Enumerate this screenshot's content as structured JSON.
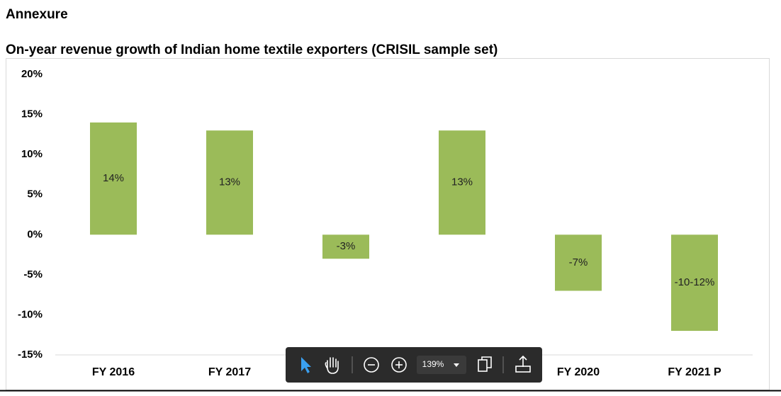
{
  "header": {
    "title": "Annexure"
  },
  "chart_data": {
    "type": "bar",
    "title": "On-year revenue growth of Indian home textile exporters (CRISIL sample set)",
    "categories": [
      "FY 2016",
      "FY 2017",
      null,
      null,
      "FY 2020",
      "FY 2021 P"
    ],
    "values": [
      14,
      13,
      -3,
      13,
      -7,
      -12
    ],
    "value_labels": [
      "14%",
      "13%",
      "-3%",
      "13%",
      "-7%",
      "-10-12%"
    ],
    "color": "#9bbb59",
    "ylim": [
      -15,
      20
    ],
    "yticks": [
      {
        "value": -15,
        "label": "-15%"
      },
      {
        "value": -10,
        "label": "-10%"
      },
      {
        "value": -5,
        "label": "-5%"
      },
      {
        "value": 0,
        "label": "0%"
      },
      {
        "value": 5,
        "label": "5%"
      },
      {
        "value": 10,
        "label": "10%"
      },
      {
        "value": 15,
        "label": "15%"
      },
      {
        "value": 20,
        "label": "20%"
      }
    ],
    "grid": false
  },
  "toolbar": {
    "zoom": "139%"
  }
}
